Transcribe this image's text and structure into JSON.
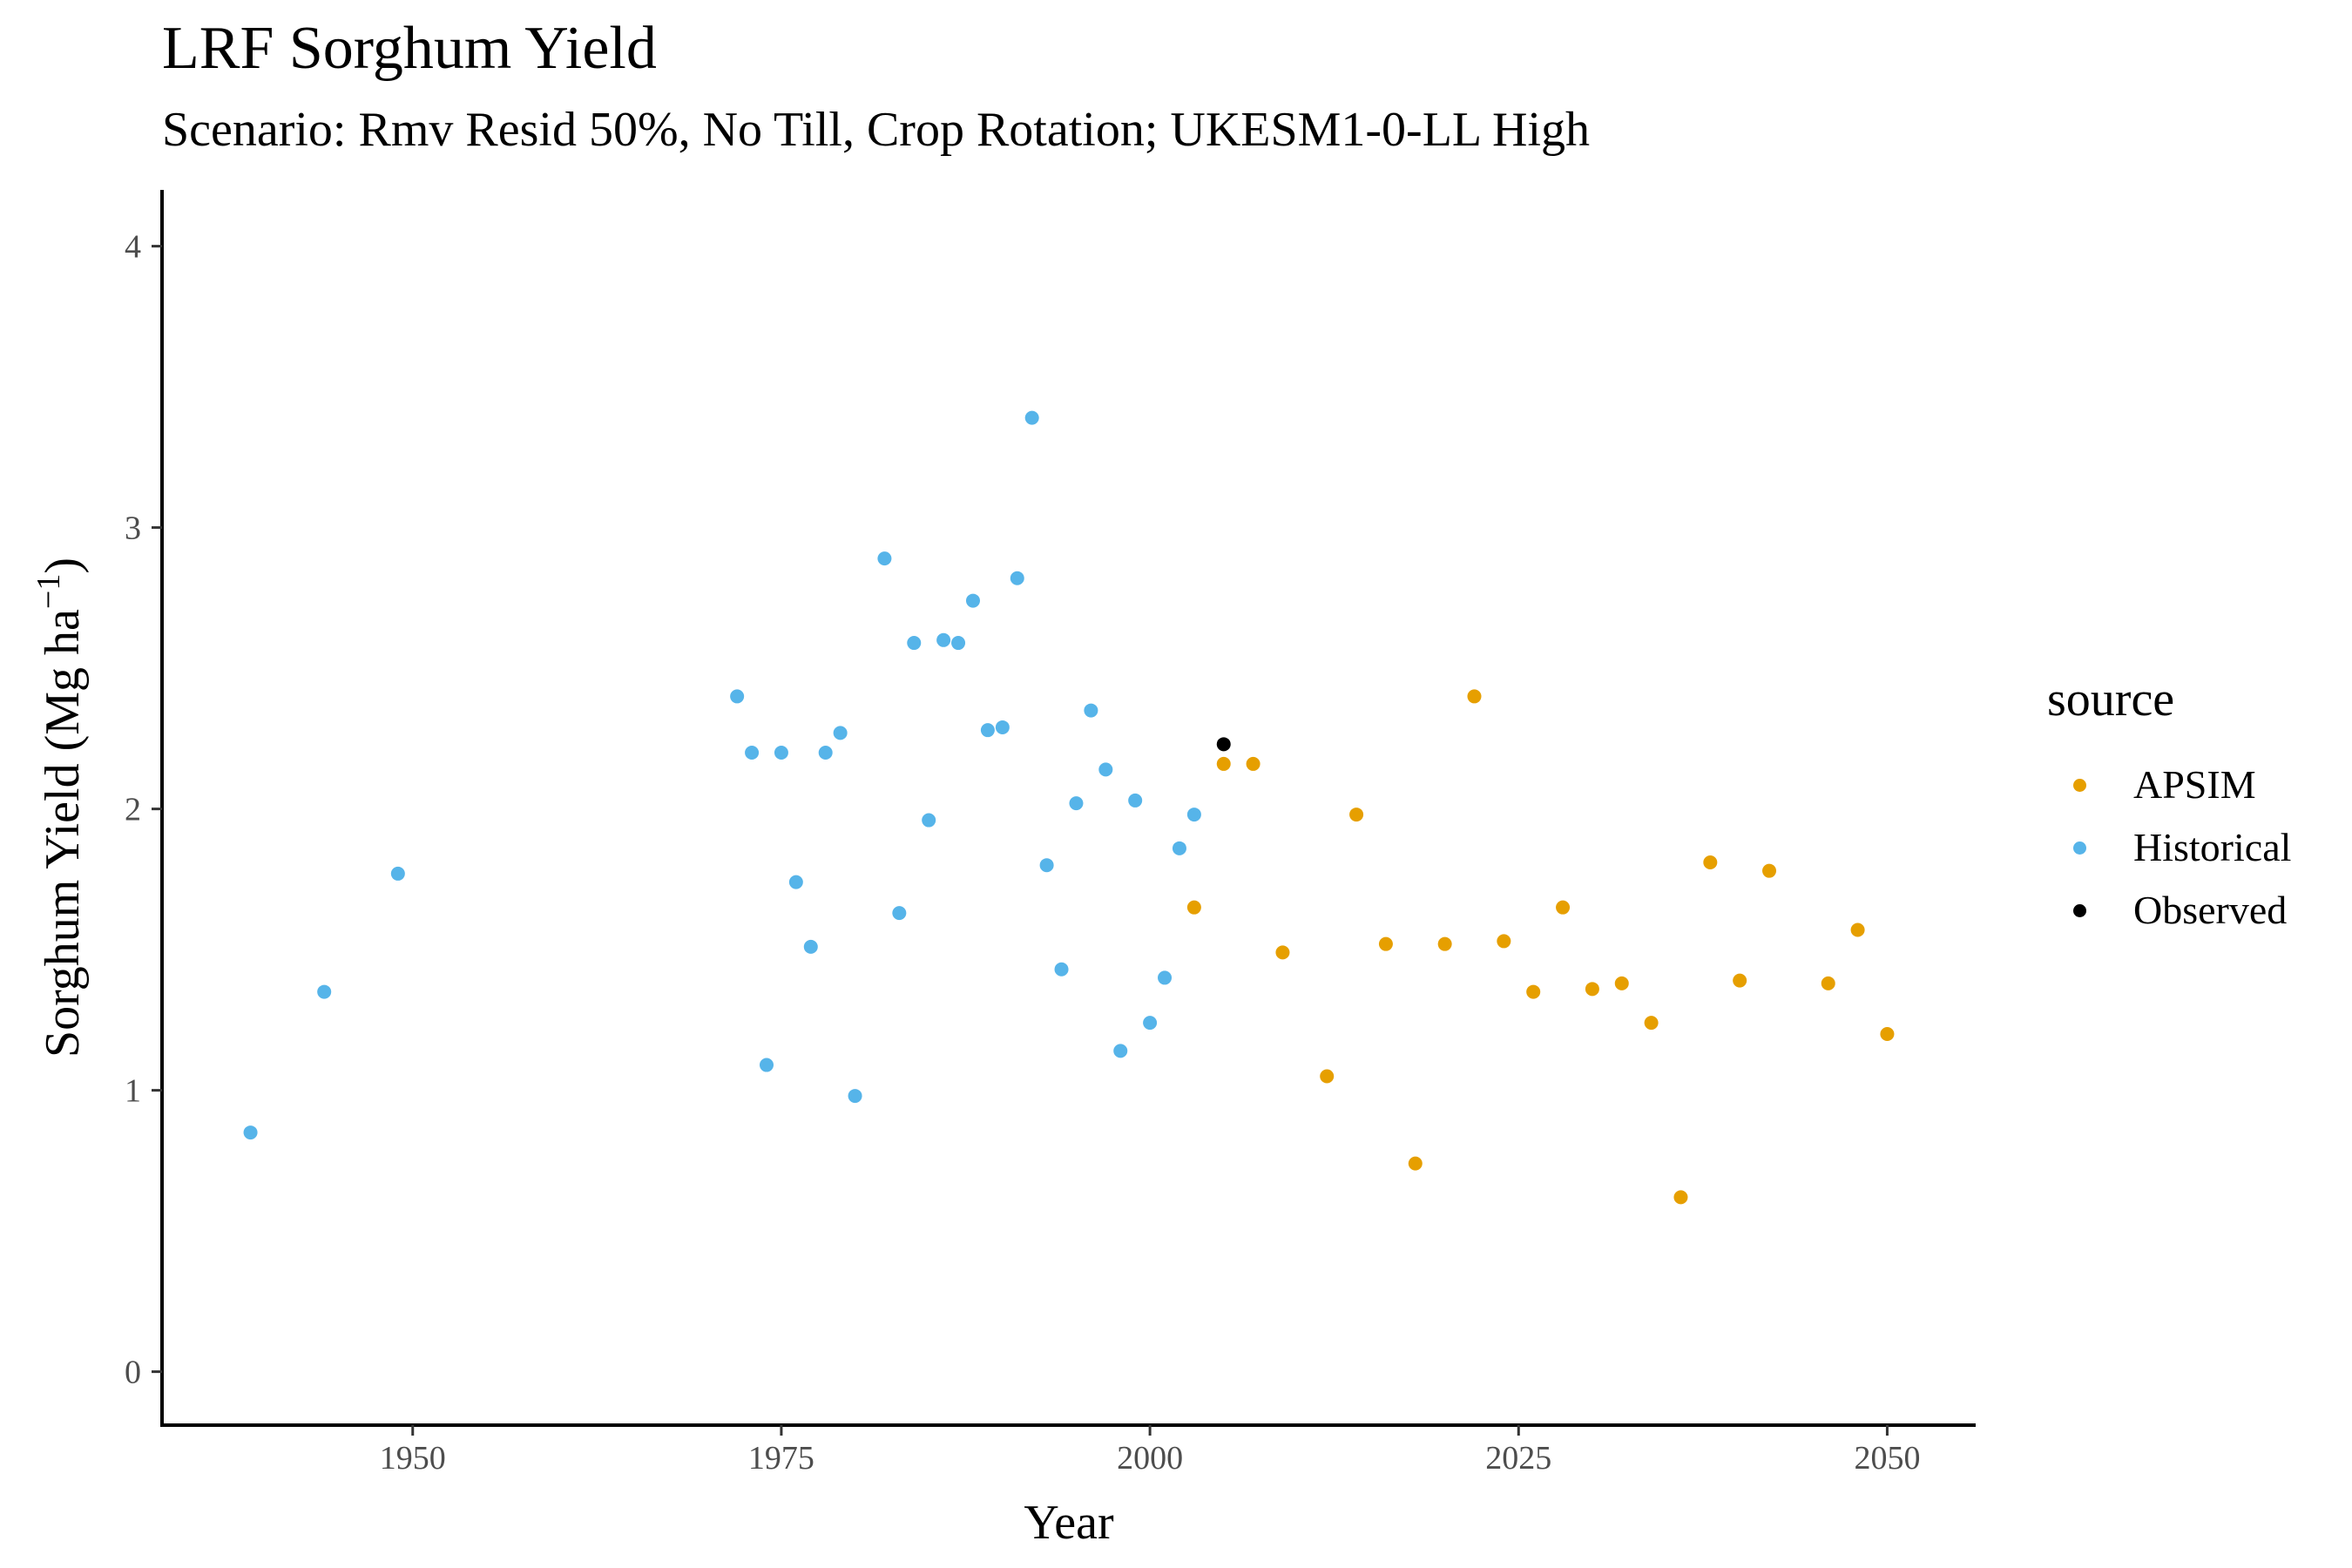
{
  "chart_data": {
    "type": "scatter",
    "title": "LRF Sorghum Yield",
    "subtitle": "Scenario: Rmv Resid 50%, No Till, Crop Rotation; UKESM1-0-LL High",
    "xlabel": "Year",
    "ylabel": "Sorghum Yield (Mg ha",
    "ylabel_sup": "−1",
    "ylabel_close": ")",
    "xlim": [
      1933,
      2056
    ],
    "ylim": [
      -0.19,
      4.2
    ],
    "x_ticks": [
      1950,
      1975,
      2000,
      2025,
      2050
    ],
    "x_tick_labels": [
      "1950",
      "1975",
      "2000",
      "2025",
      "2050"
    ],
    "y_ticks": [
      0,
      1,
      2,
      3,
      4
    ],
    "y_tick_labels": [
      "0",
      "1",
      "2",
      "3",
      "4"
    ],
    "grid": false,
    "legend": {
      "title": "source",
      "position": "right"
    },
    "series": [
      {
        "name": "APSIM",
        "color": "#E69F00",
        "x": [
          2003,
          2005,
          2007,
          2009,
          2012,
          2014,
          2016,
          2018,
          2020,
          2022,
          2024,
          2026,
          2028,
          2030,
          2032,
          2034,
          2036,
          2038,
          2040,
          2042,
          2046,
          2048,
          2050
        ],
        "y": [
          1.65,
          2.16,
          2.16,
          1.49,
          1.05,
          1.98,
          1.52,
          0.74,
          1.52,
          2.4,
          1.53,
          1.35,
          1.65,
          1.36,
          1.38,
          1.24,
          0.62,
          1.81,
          1.39,
          1.78,
          1.38,
          1.57,
          1.2
        ]
      },
      {
        "name": "Historical",
        "color": "#56B4E9",
        "x": [
          1939,
          1944,
          1949,
          1972,
          1973,
          1974,
          1975,
          1976,
          1977,
          1978,
          1979,
          1980,
          1982,
          1983,
          1984,
          1985,
          1986,
          1987,
          1988,
          1989,
          1990,
          1991,
          1992,
          1993,
          1994,
          1995,
          1996,
          1997,
          1998,
          1999,
          2000,
          2001,
          2002,
          2003
        ],
        "y": [
          0.85,
          1.35,
          1.77,
          2.4,
          2.2,
          1.09,
          2.2,
          1.74,
          1.51,
          2.2,
          2.27,
          0.98,
          2.89,
          1.63,
          2.59,
          1.96,
          2.6,
          2.59,
          2.74,
          2.28,
          2.29,
          2.82,
          3.39,
          1.8,
          1.43,
          2.02,
          2.35,
          2.14,
          1.14,
          2.03,
          1.24,
          1.4,
          1.86,
          1.98
        ]
      },
      {
        "name": "Observed",
        "color": "#000000",
        "x": [
          2005
        ],
        "y": [
          2.23
        ]
      }
    ]
  }
}
